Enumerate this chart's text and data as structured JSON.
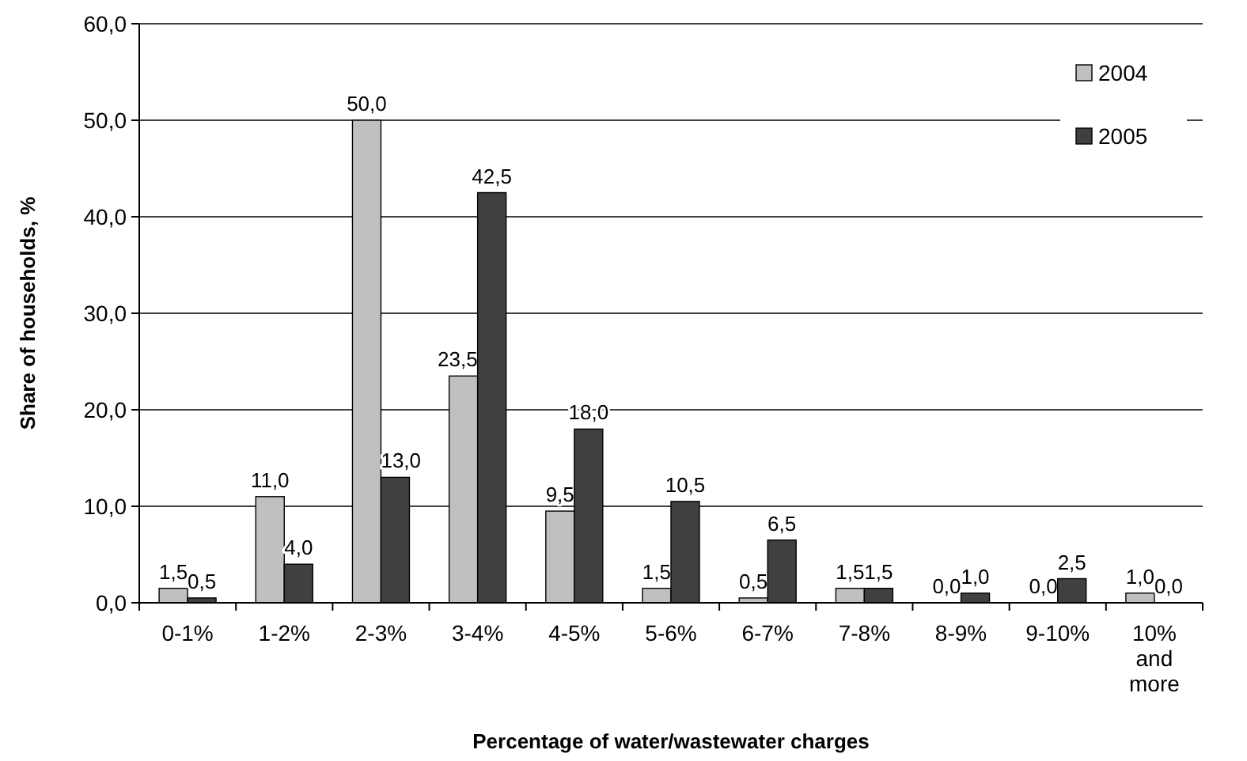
{
  "chart_data": {
    "type": "bar",
    "xlabel": "Percentage of water/wastewater charges",
    "ylabel": "Share of households, %",
    "categories": [
      "0-1%",
      "1-2%",
      "2-3%",
      "3-4%",
      "4-5%",
      "5-6%",
      "6-7%",
      "7-8%",
      "8-9%",
      "9-10%",
      "10% and more"
    ],
    "series": [
      {
        "name": "2004",
        "color": "#c0c0c0",
        "values": [
          1.5,
          11.0,
          50.0,
          23.5,
          9.5,
          1.5,
          0.5,
          1.5,
          0.0,
          0.0,
          1.0
        ],
        "value_labels": [
          "1,5",
          "11,0",
          "50,0",
          "23,5",
          "9,5",
          "1,5",
          "0,5",
          "1,5",
          "0,0",
          "0,0",
          "1,0"
        ]
      },
      {
        "name": "2005",
        "color": "#404040",
        "values": [
          0.5,
          4.0,
          13.0,
          42.5,
          18.0,
          10.5,
          6.5,
          1.5,
          1.0,
          2.5,
          0.0
        ],
        "value_labels": [
          "0,5",
          "4,0",
          "13,0",
          "42,5",
          "18,0",
          "10,5",
          "6,5",
          "1,5",
          "1,0",
          "2,5",
          "0,0"
        ]
      }
    ],
    "ylim": [
      0,
      60
    ],
    "yticks": [
      {
        "value": 0,
        "label": "0,0"
      },
      {
        "value": 10,
        "label": "10,0"
      },
      {
        "value": 20,
        "label": "20,0"
      },
      {
        "value": 30,
        "label": "30,0"
      },
      {
        "value": 40,
        "label": "40,0"
      },
      {
        "value": 50,
        "label": "50,0"
      },
      {
        "value": 60,
        "label": "60,0"
      }
    ],
    "grid": "y",
    "legend": "top right"
  }
}
